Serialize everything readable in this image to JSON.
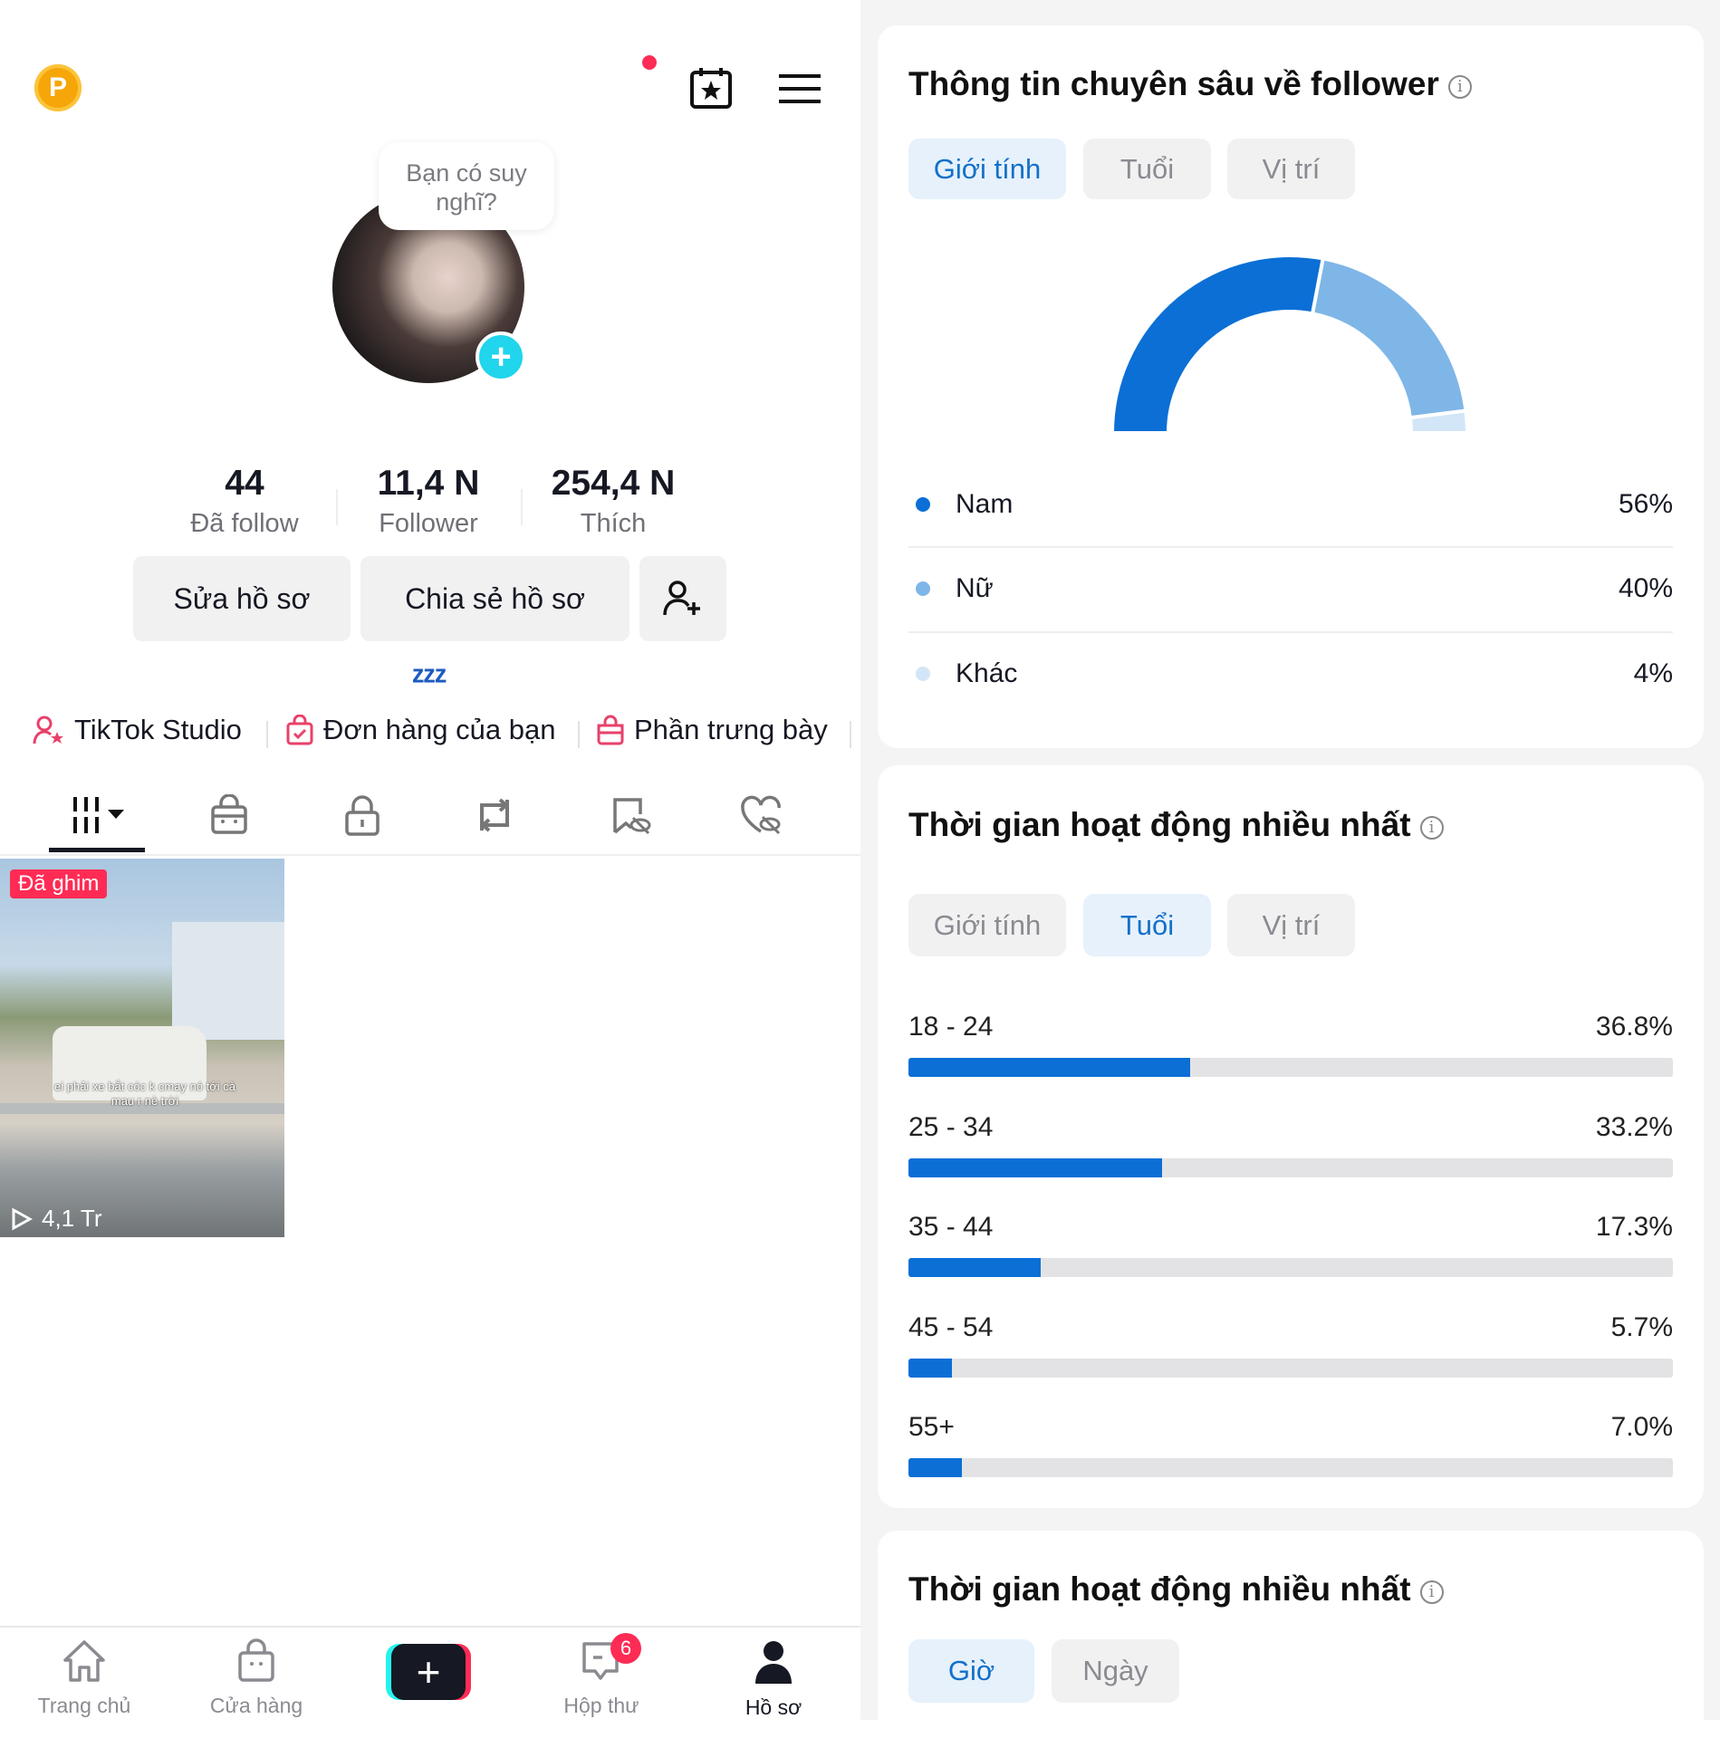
{
  "profile": {
    "points_badge": "P",
    "bubble_text": "Bạn có suy nghĩ?",
    "stats": [
      {
        "value": "44",
        "label": "Đã follow"
      },
      {
        "value": "11,4 N",
        "label": "Follower"
      },
      {
        "value": "254,4 N",
        "label": "Thích"
      }
    ],
    "edit_button": "Sửa hồ sơ",
    "share_button": "Chia sẻ hồ sơ",
    "bio": "ᶻᶻᶻ",
    "links": [
      {
        "label": "TikTok Studio",
        "icon": "user-star-icon"
      },
      {
        "label": "Đơn hàng của bạn",
        "icon": "bag-check-icon"
      },
      {
        "label": "Phần trưng bày",
        "icon": "shop-bag-icon"
      }
    ],
    "content_tabs": [
      "videos-grid-icon",
      "shop-icon",
      "lock-icon",
      "repost-icon",
      "bookmark-hidden-icon",
      "heart-hidden-icon"
    ],
    "video": {
      "pinned_label": "Đã ghim",
      "caption": "ei phải xe bắt cóc k cmay nó tới cà mau r nè trời",
      "views": "4,1 Tr"
    }
  },
  "bottom_nav": [
    {
      "label": "Trang chủ",
      "icon": "home-icon"
    },
    {
      "label": "Cửa hàng",
      "icon": "shop-icon"
    },
    {
      "label": "",
      "icon": "create-plus-icon"
    },
    {
      "label": "Hộp thư",
      "icon": "inbox-icon",
      "badge": "6"
    },
    {
      "label": "Hồ sơ",
      "icon": "profile-icon",
      "active": true
    }
  ],
  "follower_insights": {
    "title": "Thông tin chuyên sâu về follower",
    "tabs": [
      "Giới tính",
      "Tuổi",
      "Vị trí"
    ],
    "active_tab": "Giới tính"
  },
  "active_time_age": {
    "title": "Thời gian hoạt động nhiều nhất",
    "tabs": [
      "Giới tính",
      "Tuổi",
      "Vị trí"
    ],
    "active_tab": "Tuổi"
  },
  "active_time_hour": {
    "title": "Thời gian hoạt động nhiều nhất",
    "tabs": [
      "Giờ",
      "Ngày"
    ],
    "active_tab": "Giờ"
  },
  "chart_data": [
    {
      "type": "pie",
      "style": "half-donut",
      "categories": [
        "Nam",
        "Nữ",
        "Khác"
      ],
      "values": [
        56,
        40,
        4
      ],
      "labels": [
        "56%",
        "40%",
        "4%"
      ],
      "colors": [
        "#0b6fd6",
        "#7fb6e8",
        "#d3e6f7"
      ]
    },
    {
      "type": "bar",
      "orientation": "horizontal",
      "categories": [
        "18 - 24",
        "25 - 34",
        "35 - 44",
        "45 - 54",
        "55+"
      ],
      "values": [
        36.8,
        33.2,
        17.3,
        5.7,
        7.0
      ],
      "labels": [
        "36.8%",
        "33.2%",
        "17.3%",
        "5.7%",
        "7.0%"
      ],
      "xlim": [
        0,
        100
      ],
      "color": "#0b6fd6"
    }
  ]
}
